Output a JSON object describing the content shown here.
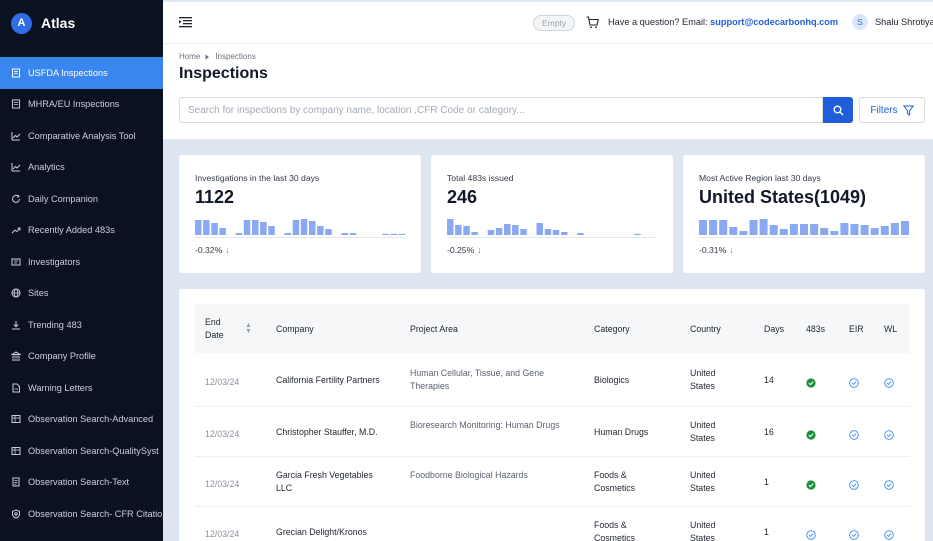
{
  "brand": {
    "name": "Atlas",
    "logo_glyph": "A"
  },
  "sidebar": {
    "items": [
      {
        "label": "USFDA Inspections",
        "icon": "document-icon",
        "active": true
      },
      {
        "label": "MHRA/EU Inspections",
        "icon": "document-icon",
        "active": false
      },
      {
        "label": "Comparative Analysis Tool",
        "icon": "line-chart-icon",
        "active": false
      },
      {
        "label": "Analytics",
        "icon": "line-chart-icon",
        "active": false
      },
      {
        "label": "Daily Companion",
        "icon": "refresh-icon",
        "active": false
      },
      {
        "label": "Recently Added 483s",
        "icon": "trend-icon",
        "active": false
      },
      {
        "label": "Investigators",
        "icon": "id-card-icon",
        "active": false
      },
      {
        "label": "Sites",
        "icon": "globe-icon",
        "active": false
      },
      {
        "label": "Trending 483",
        "icon": "download-icon",
        "active": false
      },
      {
        "label": "Company Profile",
        "icon": "bank-icon",
        "active": false
      },
      {
        "label": "Warning Letters",
        "icon": "file-icon",
        "active": false
      },
      {
        "label": "Observation Search-Advanced",
        "icon": "table-icon",
        "active": false
      },
      {
        "label": "Observation Search-QualitySyst",
        "icon": "table-icon",
        "active": false
      },
      {
        "label": "Observation Search-Text",
        "icon": "file-text-icon",
        "active": false
      },
      {
        "label": "Observation Search- CFR Citatio",
        "icon": "shield-icon",
        "active": false
      }
    ]
  },
  "topbar": {
    "empty_label": "Empty",
    "question_text": "Have a question? Email: ",
    "support_email": "support@codecarbonhq.com",
    "user_initial": "S",
    "user_name": "Shalu Shrotiya"
  },
  "header": {
    "breadcrumb_home": "Home",
    "breadcrumb_current": "Inspections",
    "title": "Inspections",
    "search_placeholder": "Search for inspections by company name, location ,CFR Code or category...",
    "filters_label": "Filters"
  },
  "stats": [
    {
      "label": "Investigations in the last 30 days",
      "value": "1122",
      "change": "-0.32%",
      "bars": [
        0.75,
        0.75,
        0.6,
        0.35,
        0,
        0.1,
        0.75,
        0.75,
        0.65,
        0.45,
        0,
        0.1,
        0.75,
        0.8,
        0.7,
        0.45,
        0.3,
        0,
        0.1,
        0.1,
        0,
        0,
        0,
        0.05,
        0.05,
        0.05
      ]
    },
    {
      "label": "Total 483s issued",
      "value": "246",
      "change": "-0.25%",
      "bars": [
        0.8,
        0.5,
        0.45,
        0.15,
        0,
        0.25,
        0.35,
        0.55,
        0.5,
        0.3,
        0,
        0.6,
        0.3,
        0.25,
        0.15,
        0,
        0.1,
        0,
        0,
        0,
        0,
        0,
        0,
        0.05,
        0,
        0
      ]
    },
    {
      "label": "Most Active Region last 30 days",
      "value": "United States(1049)",
      "change": "-0.31%",
      "bars": [
        0.75,
        0.75,
        0.75,
        0.4,
        0.2,
        0.75,
        0.8,
        0.5,
        0.3,
        0.55,
        0.55,
        0.55,
        0.35,
        0.2,
        0.6,
        0.55,
        0.5,
        0.35,
        0.45,
        0.6,
        0.7
      ]
    }
  ],
  "table": {
    "columns": [
      "End Date",
      "Company",
      "Project Area",
      "Category",
      "Country",
      "Days",
      "483s",
      "EIR",
      "WL"
    ],
    "rows": [
      {
        "date": "12/03/24",
        "company": [
          "California Fertility Partners"
        ],
        "area": [
          "Human Cellular, Tissue, and Gene",
          "Therapies"
        ],
        "category": [
          "Biologics"
        ],
        "country": [
          "United",
          "States"
        ],
        "days": "14",
        "s483": "filled",
        "eir": "outline",
        "wl": "outline"
      },
      {
        "date": "12/03/24",
        "company": [
          "Christopher Stauffer, M.D."
        ],
        "area": [
          "Bioresearch Monitoring: Human Drugs"
        ],
        "category": [
          "Human Drugs"
        ],
        "country": [
          "United",
          "States"
        ],
        "days": "16",
        "s483": "filled",
        "eir": "outline",
        "wl": "outline"
      },
      {
        "date": "12/03/24",
        "company": [
          "Garcia Fresh Vegetables",
          "LLC"
        ],
        "area": [
          "Foodborne Biological Hazards"
        ],
        "category": [
          "Foods &",
          "Cosmetics"
        ],
        "country": [
          "United",
          "States"
        ],
        "days": "1",
        "s483": "filled",
        "eir": "outline",
        "wl": "outline"
      },
      {
        "date": "12/03/24",
        "company": [
          "Grecian Delight/Kronos"
        ],
        "area": [
          ""
        ],
        "category": [
          "Foods &",
          "Cosmetics"
        ],
        "country": [
          "United",
          "States"
        ],
        "days": "1",
        "s483": "outline",
        "eir": "outline",
        "wl": "outline"
      }
    ]
  },
  "colors": {
    "accent": "#1f5ed8",
    "sidebar_bg": "#0a1222",
    "active": "#3a86f0",
    "bar": "#8aa9f2",
    "success": "#1e8e3e"
  }
}
